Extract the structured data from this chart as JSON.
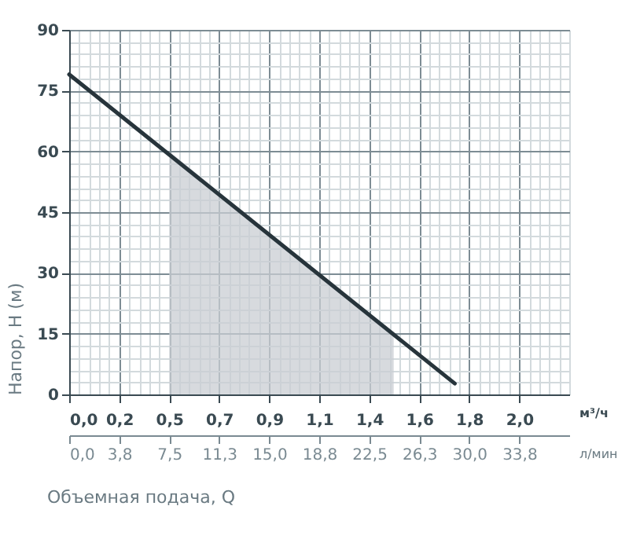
{
  "chart_data": {
    "type": "line",
    "ylabel": "Напор, H (м)",
    "xlabel": "м³/ч",
    "x2label": "л/мин",
    "annotations": [
      "Объемная подача, Q"
    ],
    "xlim": [
      0,
      2.25
    ],
    "xticks": [
      {
        "value": 0,
        "label": "0,0"
      },
      {
        "value": 0.225,
        "label": "0,2"
      },
      {
        "value": 0.45,
        "label": "0,5"
      },
      {
        "value": 0.675,
        "label": "0,7"
      },
      {
        "value": 0.9,
        "label": "0,9"
      },
      {
        "value": 1.125,
        "label": "1,1"
      },
      {
        "value": 1.35,
        "label": "1,4"
      },
      {
        "value": 1.575,
        "label": "1,6"
      },
      {
        "value": 1.8,
        "label": "1,8"
      },
      {
        "value": 2.025,
        "label": "2,0"
      }
    ],
    "x2lim": [
      0,
      37.5
    ],
    "x2ticks": [
      {
        "value": 0,
        "label": "0,0"
      },
      {
        "value": 3.75,
        "label": "3,8"
      },
      {
        "value": 7.5,
        "label": "7,5"
      },
      {
        "value": 11.25,
        "label": "11,3"
      },
      {
        "value": 15,
        "label": "15,0"
      },
      {
        "value": 18.75,
        "label": "18,8"
      },
      {
        "value": 22.5,
        "label": "22,5"
      },
      {
        "value": 26.25,
        "label": "26,3"
      },
      {
        "value": 30,
        "label": "30,0"
      },
      {
        "value": 33.75,
        "label": "33,8"
      }
    ],
    "ylim": [
      0,
      90
    ],
    "yticks": [
      0,
      15,
      30,
      45,
      60,
      75,
      90
    ],
    "grid": true,
    "series": [
      {
        "type": "area",
        "color": "#c9ced3",
        "x": [
          0.45,
          1.46
        ],
        "values": [
          60,
          15
        ]
      },
      {
        "color": "#27343b",
        "x": [
          0,
          1.735
        ],
        "values": [
          79,
          2.7
        ]
      }
    ]
  }
}
